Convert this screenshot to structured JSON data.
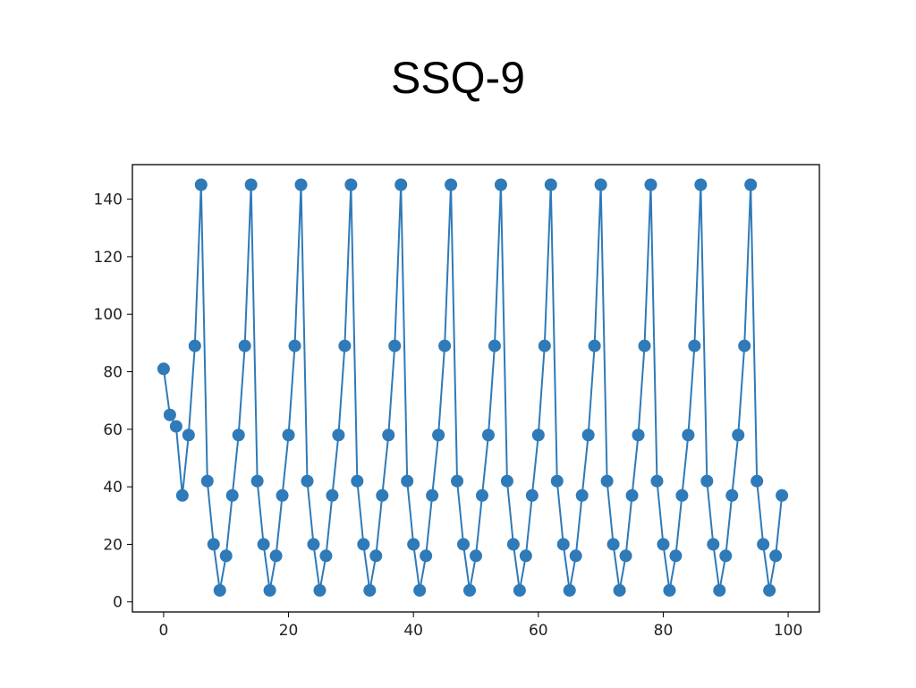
{
  "chart_data": {
    "type": "line",
    "title": "SSQ-9",
    "xlabel": "",
    "ylabel": "",
    "xlim": [
      -5,
      105
    ],
    "ylim": [
      -3.5,
      152
    ],
    "x_ticks": [
      0,
      20,
      40,
      60,
      80,
      100
    ],
    "y_ticks": [
      0,
      20,
      40,
      60,
      80,
      100,
      120,
      140
    ],
    "grid": false,
    "legend": "none",
    "color": "#2f7ab8",
    "marker": "circle",
    "series": [
      {
        "x": [
          0,
          1,
          2,
          3,
          4,
          5,
          6,
          7,
          8,
          9,
          10,
          11,
          12,
          13,
          14,
          15,
          16,
          17,
          18,
          19,
          20,
          21,
          22,
          23,
          24,
          25,
          26,
          27,
          28,
          29,
          30,
          31,
          32,
          33,
          34,
          35,
          36,
          37,
          38,
          39,
          40,
          41,
          42,
          43,
          44,
          45,
          46,
          47,
          48,
          49,
          50,
          51,
          52,
          53,
          54,
          55,
          56,
          57,
          58,
          59,
          60,
          61,
          62,
          63,
          64,
          65,
          66,
          67,
          68,
          69,
          70,
          71,
          72,
          73,
          74,
          75,
          76,
          77,
          78,
          79,
          80,
          81,
          82,
          83,
          84,
          85,
          86,
          87,
          88,
          89,
          90,
          91,
          92,
          93,
          94,
          95,
          96,
          97,
          98,
          99
        ],
        "values": [
          81,
          65,
          61,
          37,
          58,
          89,
          145,
          42,
          20,
          4,
          16,
          37,
          58,
          89,
          145,
          42,
          20,
          4,
          16,
          37,
          58,
          89,
          145,
          42,
          20,
          4,
          16,
          37,
          58,
          89,
          145,
          42,
          20,
          4,
          16,
          37,
          58,
          89,
          145,
          42,
          20,
          4,
          16,
          37,
          58,
          89,
          145,
          42,
          20,
          4,
          16,
          37,
          58,
          89,
          145,
          42,
          20,
          4,
          16,
          37,
          58,
          89,
          145,
          42,
          20,
          4,
          16,
          37,
          58,
          89,
          145,
          42,
          20,
          4,
          16,
          37,
          58,
          89,
          145,
          42,
          20,
          4,
          16,
          37,
          58,
          89,
          145,
          42,
          20,
          4,
          16,
          37,
          58,
          89,
          145,
          42,
          20,
          4,
          16,
          37
        ]
      }
    ]
  }
}
